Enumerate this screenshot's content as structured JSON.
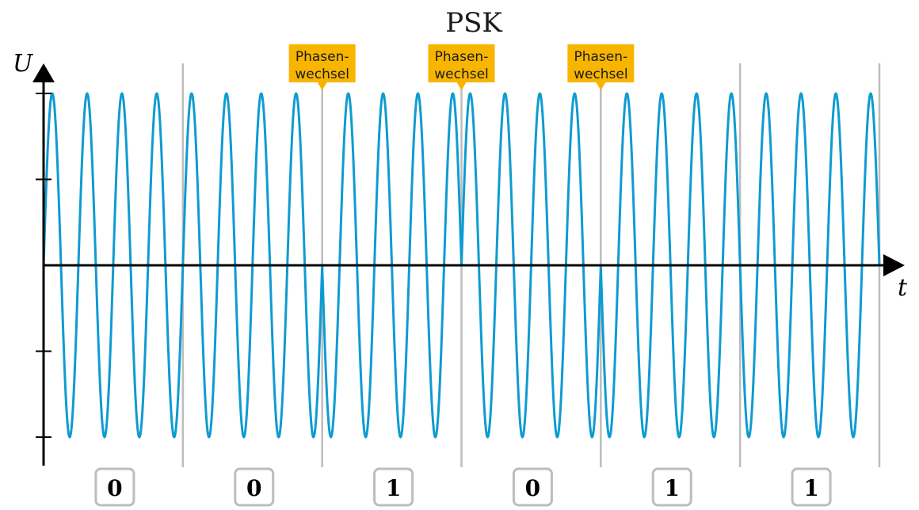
{
  "chart_data": {
    "type": "line",
    "title": "PSK",
    "ylabel": "U",
    "xlabel": "t",
    "bits": [
      "0",
      "0",
      "1",
      "0",
      "1",
      "1"
    ],
    "phases_deg": [
      0,
      0,
      180,
      0,
      180,
      180
    ],
    "cycles_per_bit": 4,
    "amplitude": 1,
    "ylim": [
      -1,
      1
    ],
    "yticks": [
      -1,
      -0.5,
      0.5,
      1
    ],
    "annotations": [
      {
        "line1": "Phasen-",
        "line2": "wechsel",
        "at_boundary": 2
      },
      {
        "line1": "Phasen-",
        "line2": "wechsel",
        "at_boundary": 3
      },
      {
        "line1": "Phasen-",
        "line2": "wechsel",
        "at_boundary": 4
      }
    ],
    "grid": false,
    "colors": {
      "signal": "#0f9bd1",
      "annotation": "#f7b500",
      "boundary": "#bdbdbd",
      "axis": "#000000",
      "bit_box_border": "#bdbdbd"
    }
  }
}
